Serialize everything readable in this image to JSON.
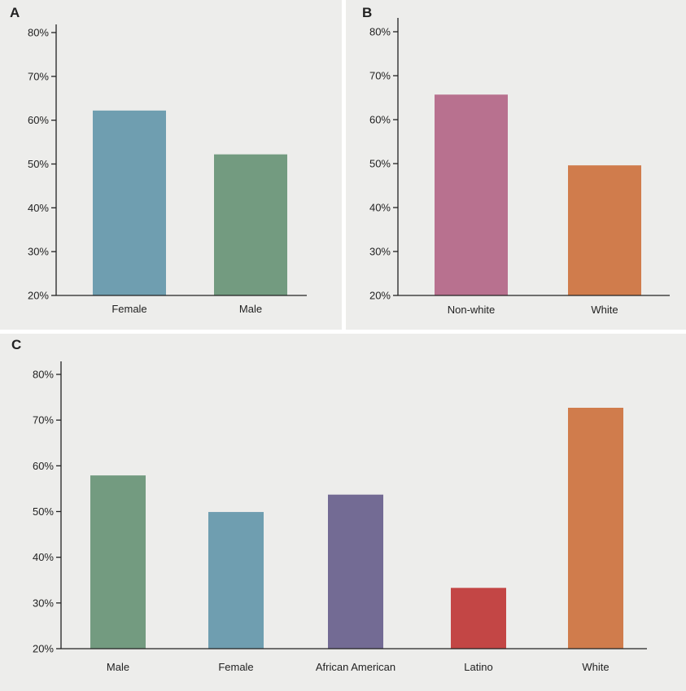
{
  "chart_data": [
    {
      "id": "A",
      "panel_label": "A",
      "type": "bar",
      "categories": [
        "Female",
        "Male"
      ],
      "values": [
        62.2,
        52.2
      ],
      "colors": [
        "#6f9eb0",
        "#739b80"
      ],
      "ylim": [
        20,
        80
      ],
      "yticks": [
        "20%",
        "30%",
        "40%",
        "50%",
        "60%",
        "70%",
        "80%"
      ],
      "title": "",
      "xlabel": "",
      "ylabel": ""
    },
    {
      "id": "B",
      "panel_label": "B",
      "type": "bar",
      "categories": [
        "Non-white",
        "White"
      ],
      "values": [
        65.7,
        49.6
      ],
      "colors": [
        "#b8718f",
        "#d07c4c"
      ],
      "ylim": [
        20,
        80
      ],
      "yticks": [
        "20%",
        "30%",
        "40%",
        "50%",
        "60%",
        "70%",
        "80%"
      ],
      "title": "",
      "xlabel": "",
      "ylabel": ""
    },
    {
      "id": "C",
      "panel_label": "C",
      "type": "bar",
      "categories": [
        "Male",
        "Female",
        "African American",
        "Latino",
        "White"
      ],
      "values": [
        57.9,
        49.9,
        53.7,
        33.3,
        72.7
      ],
      "colors": [
        "#739b80",
        "#6f9eb0",
        "#736b94",
        "#c34645",
        "#d07c4c"
      ],
      "ylim": [
        20,
        80
      ],
      "yticks": [
        "20%",
        "30%",
        "40%",
        "50%",
        "60%",
        "70%",
        "80%"
      ],
      "title": "",
      "xlabel": "",
      "ylabel": ""
    }
  ]
}
